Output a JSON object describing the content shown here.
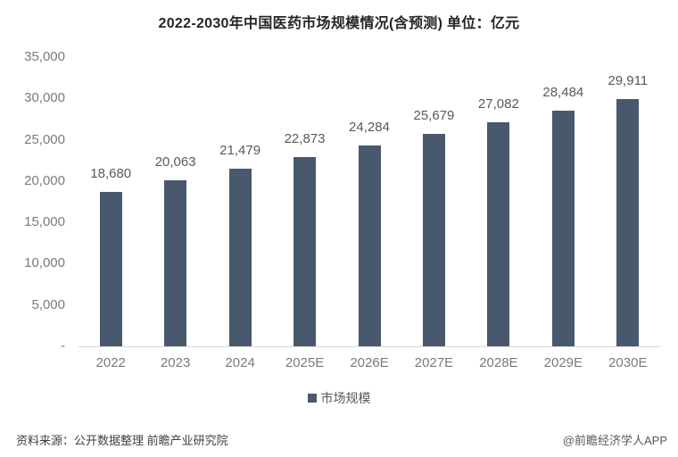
{
  "title": "2022-2030年中国医药市场规模情况(含预测) 单位：亿元",
  "chart_data": {
    "type": "bar",
    "title": "2022-2030年中国医药市场规模情况(含预测) 单位：亿元",
    "unit": "亿元",
    "categories": [
      "2022",
      "2023",
      "2024",
      "2025E",
      "2026E",
      "2027E",
      "2028E",
      "2029E",
      "2030E"
    ],
    "series": [
      {
        "name": "市场规模",
        "values": [
          18680,
          20063,
          21479,
          22873,
          24284,
          25679,
          27082,
          28484,
          29911
        ],
        "labels": [
          "18,680",
          "20,063",
          "21,479",
          "22,873",
          "24,284",
          "25,679",
          "27,082",
          "28,484",
          "29,911"
        ],
        "color": "#48596E"
      }
    ],
    "ylim": [
      0,
      35000
    ],
    "yticks": [
      {
        "value": 35000,
        "label": "35,000"
      },
      {
        "value": 30000,
        "label": "30,000"
      },
      {
        "value": 25000,
        "label": "25,000"
      },
      {
        "value": 20000,
        "label": "20,000"
      },
      {
        "value": 15000,
        "label": "15,000"
      },
      {
        "value": 10000,
        "label": "10,000"
      },
      {
        "value": 5000,
        "label": "5,000"
      },
      {
        "value": 0,
        "label": "-"
      }
    ],
    "grid": false,
    "legend_position": "bottom",
    "colors": {
      "bar": "#48596E",
      "data_label": "#595959",
      "tick_label": "#7A7A7A",
      "axis_line": "#D9D9D9",
      "title": "#262626"
    }
  },
  "footer": {
    "source": "资料来源：公开数据整理 前瞻产业研究院",
    "watermark": "@前瞻经济学人APP"
  }
}
